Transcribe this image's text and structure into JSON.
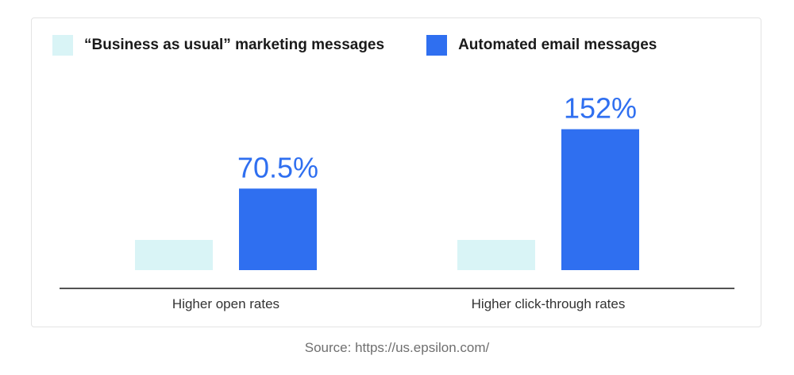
{
  "chart_data": {
    "type": "bar",
    "categories": [
      "Higher open rates",
      "Higher click-through rates"
    ],
    "series": [
      {
        "name": "“Business as usual” marketing messages",
        "values": [
          0,
          0
        ],
        "color": "#d9f4f6",
        "data_labels": [
          "",
          ""
        ]
      },
      {
        "name": "Automated email messages",
        "values": [
          70.5,
          152
        ],
        "color": "#2f6ff0",
        "data_labels": [
          "70.5%",
          "152%"
        ]
      }
    ],
    "baseline_reference_value": 0,
    "title": "",
    "xlabel": "",
    "ylabel": "",
    "grid": false,
    "legend_position": "top-left"
  },
  "source": "Source: https://us.epsilon.com/",
  "colors": {
    "label": "#2f6ff0",
    "axis": "#1a1a1a",
    "tick_label": "#333333"
  }
}
